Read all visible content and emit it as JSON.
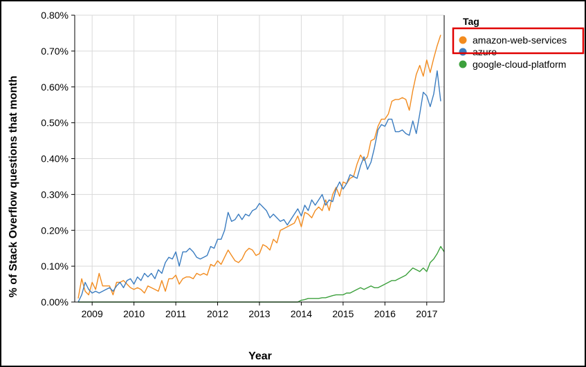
{
  "chart_data": {
    "type": "line",
    "xlabel": "Year",
    "ylabel": "% of Stack Overflow questions that month",
    "x_ticks": [
      "2009",
      "2010",
      "2011",
      "2012",
      "2013",
      "2014",
      "2015",
      "2016",
      "2017"
    ],
    "y_ticks": [
      "0.00%",
      "0.10%",
      "0.20%",
      "0.30%",
      "0.40%",
      "0.50%",
      "0.60%",
      "0.70%",
      "0.80%"
    ],
    "xlim": [
      "2008-08",
      "2017-06"
    ],
    "ylim": [
      0,
      0.8
    ],
    "grid": true,
    "legend": {
      "title": "Tag",
      "placement": "top-right"
    },
    "series": [
      {
        "name": "amazon-web-services",
        "color": "#f28b1e",
        "points": [
          [
            "2008-09",
            0.01
          ],
          [
            "2008-10",
            0.065
          ],
          [
            "2008-11",
            0.03
          ],
          [
            "2008-12",
            0.02
          ],
          [
            "2009-01",
            0.055
          ],
          [
            "2009-02",
            0.035
          ],
          [
            "2009-03",
            0.08
          ],
          [
            "2009-04",
            0.045
          ],
          [
            "2009-05",
            0.045
          ],
          [
            "2009-06",
            0.045
          ],
          [
            "2009-07",
            0.02
          ],
          [
            "2009-08",
            0.055
          ],
          [
            "2009-09",
            0.055
          ],
          [
            "2009-10",
            0.06
          ],
          [
            "2009-11",
            0.05
          ],
          [
            "2009-12",
            0.04
          ],
          [
            "2010-01",
            0.035
          ],
          [
            "2010-02",
            0.04
          ],
          [
            "2010-03",
            0.035
          ],
          [
            "2010-04",
            0.025
          ],
          [
            "2010-05",
            0.045
          ],
          [
            "2010-06",
            0.04
          ],
          [
            "2010-07",
            0.035
          ],
          [
            "2010-08",
            0.03
          ],
          [
            "2010-09",
            0.06
          ],
          [
            "2010-10",
            0.03
          ],
          [
            "2010-11",
            0.065
          ],
          [
            "2010-12",
            0.065
          ],
          [
            "2011-01",
            0.075
          ],
          [
            "2011-02",
            0.05
          ],
          [
            "2011-03",
            0.065
          ],
          [
            "2011-04",
            0.07
          ],
          [
            "2011-05",
            0.07
          ],
          [
            "2011-06",
            0.065
          ],
          [
            "2011-07",
            0.08
          ],
          [
            "2011-08",
            0.075
          ],
          [
            "2011-09",
            0.08
          ],
          [
            "2011-10",
            0.075
          ],
          [
            "2011-11",
            0.105
          ],
          [
            "2011-12",
            0.1
          ],
          [
            "2012-01",
            0.115
          ],
          [
            "2012-02",
            0.105
          ],
          [
            "2012-03",
            0.125
          ],
          [
            "2012-04",
            0.145
          ],
          [
            "2012-05",
            0.13
          ],
          [
            "2012-06",
            0.115
          ],
          [
            "2012-07",
            0.11
          ],
          [
            "2012-08",
            0.12
          ],
          [
            "2012-09",
            0.14
          ],
          [
            "2012-10",
            0.15
          ],
          [
            "2012-11",
            0.145
          ],
          [
            "2012-12",
            0.13
          ],
          [
            "2013-01",
            0.135
          ],
          [
            "2013-02",
            0.16
          ],
          [
            "2013-03",
            0.155
          ],
          [
            "2013-04",
            0.145
          ],
          [
            "2013-05",
            0.175
          ],
          [
            "2013-06",
            0.165
          ],
          [
            "2013-07",
            0.2
          ],
          [
            "2013-08",
            0.205
          ],
          [
            "2013-09",
            0.21
          ],
          [
            "2013-10",
            0.215
          ],
          [
            "2013-11",
            0.22
          ],
          [
            "2013-12",
            0.24
          ],
          [
            "2014-01",
            0.21
          ],
          [
            "2014-02",
            0.25
          ],
          [
            "2014-03",
            0.245
          ],
          [
            "2014-04",
            0.235
          ],
          [
            "2014-05",
            0.255
          ],
          [
            "2014-06",
            0.265
          ],
          [
            "2014-07",
            0.255
          ],
          [
            "2014-08",
            0.285
          ],
          [
            "2014-09",
            0.255
          ],
          [
            "2014-10",
            0.3
          ],
          [
            "2014-11",
            0.32
          ],
          [
            "2014-12",
            0.295
          ],
          [
            "2015-01",
            0.335
          ],
          [
            "2015-02",
            0.33
          ],
          [
            "2015-03",
            0.345
          ],
          [
            "2015-04",
            0.35
          ],
          [
            "2015-05",
            0.385
          ],
          [
            "2015-06",
            0.41
          ],
          [
            "2015-07",
            0.395
          ],
          [
            "2015-08",
            0.405
          ],
          [
            "2015-09",
            0.45
          ],
          [
            "2015-10",
            0.455
          ],
          [
            "2015-11",
            0.49
          ],
          [
            "2015-12",
            0.51
          ],
          [
            "2016-01",
            0.51
          ],
          [
            "2016-02",
            0.525
          ],
          [
            "2016-03",
            0.56
          ],
          [
            "2016-04",
            0.565
          ],
          [
            "2016-05",
            0.565
          ],
          [
            "2016-06",
            0.57
          ],
          [
            "2016-07",
            0.565
          ],
          [
            "2016-08",
            0.535
          ],
          [
            "2016-09",
            0.59
          ],
          [
            "2016-10",
            0.635
          ],
          [
            "2016-11",
            0.66
          ],
          [
            "2016-12",
            0.63
          ],
          [
            "2017-01",
            0.675
          ],
          [
            "2017-02",
            0.64
          ],
          [
            "2017-03",
            0.68
          ],
          [
            "2017-04",
            0.715
          ],
          [
            "2017-05",
            0.745
          ]
        ]
      },
      {
        "name": "azure",
        "color": "#3a7cc0",
        "points": [
          [
            "2008-09",
            0.0
          ],
          [
            "2008-10",
            0.02
          ],
          [
            "2008-11",
            0.055
          ],
          [
            "2008-12",
            0.035
          ],
          [
            "2009-01",
            0.025
          ],
          [
            "2009-02",
            0.03
          ],
          [
            "2009-03",
            0.025
          ],
          [
            "2009-04",
            0.03
          ],
          [
            "2009-05",
            0.035
          ],
          [
            "2009-06",
            0.04
          ],
          [
            "2009-07",
            0.03
          ],
          [
            "2009-08",
            0.045
          ],
          [
            "2009-09",
            0.055
          ],
          [
            "2009-10",
            0.04
          ],
          [
            "2009-11",
            0.06
          ],
          [
            "2009-12",
            0.065
          ],
          [
            "2010-01",
            0.05
          ],
          [
            "2010-02",
            0.07
          ],
          [
            "2010-03",
            0.06
          ],
          [
            "2010-04",
            0.08
          ],
          [
            "2010-05",
            0.07
          ],
          [
            "2010-06",
            0.08
          ],
          [
            "2010-07",
            0.065
          ],
          [
            "2010-08",
            0.09
          ],
          [
            "2010-09",
            0.08
          ],
          [
            "2010-10",
            0.11
          ],
          [
            "2010-11",
            0.125
          ],
          [
            "2010-12",
            0.12
          ],
          [
            "2011-01",
            0.14
          ],
          [
            "2011-02",
            0.1
          ],
          [
            "2011-03",
            0.14
          ],
          [
            "2011-04",
            0.14
          ],
          [
            "2011-05",
            0.15
          ],
          [
            "2011-06",
            0.14
          ],
          [
            "2011-07",
            0.125
          ],
          [
            "2011-08",
            0.12
          ],
          [
            "2011-09",
            0.125
          ],
          [
            "2011-10",
            0.13
          ],
          [
            "2011-11",
            0.155
          ],
          [
            "2011-12",
            0.15
          ],
          [
            "2012-01",
            0.175
          ],
          [
            "2012-02",
            0.175
          ],
          [
            "2012-03",
            0.2
          ],
          [
            "2012-04",
            0.25
          ],
          [
            "2012-05",
            0.225
          ],
          [
            "2012-06",
            0.23
          ],
          [
            "2012-07",
            0.245
          ],
          [
            "2012-08",
            0.23
          ],
          [
            "2012-09",
            0.245
          ],
          [
            "2012-10",
            0.24
          ],
          [
            "2012-11",
            0.255
          ],
          [
            "2012-12",
            0.26
          ],
          [
            "2013-01",
            0.275
          ],
          [
            "2013-02",
            0.265
          ],
          [
            "2013-03",
            0.255
          ],
          [
            "2013-04",
            0.235
          ],
          [
            "2013-05",
            0.245
          ],
          [
            "2013-06",
            0.235
          ],
          [
            "2013-07",
            0.225
          ],
          [
            "2013-08",
            0.23
          ],
          [
            "2013-09",
            0.215
          ],
          [
            "2013-10",
            0.23
          ],
          [
            "2013-11",
            0.245
          ],
          [
            "2013-12",
            0.26
          ],
          [
            "2014-01",
            0.24
          ],
          [
            "2014-02",
            0.27
          ],
          [
            "2014-03",
            0.255
          ],
          [
            "2014-04",
            0.285
          ],
          [
            "2014-05",
            0.27
          ],
          [
            "2014-06",
            0.285
          ],
          [
            "2014-07",
            0.3
          ],
          [
            "2014-08",
            0.27
          ],
          [
            "2014-09",
            0.285
          ],
          [
            "2014-10",
            0.28
          ],
          [
            "2014-11",
            0.315
          ],
          [
            "2014-12",
            0.335
          ],
          [
            "2015-01",
            0.315
          ],
          [
            "2015-02",
            0.33
          ],
          [
            "2015-03",
            0.355
          ],
          [
            "2015-04",
            0.35
          ],
          [
            "2015-05",
            0.345
          ],
          [
            "2015-06",
            0.38
          ],
          [
            "2015-07",
            0.405
          ],
          [
            "2015-08",
            0.37
          ],
          [
            "2015-09",
            0.39
          ],
          [
            "2015-10",
            0.43
          ],
          [
            "2015-11",
            0.48
          ],
          [
            "2015-12",
            0.495
          ],
          [
            "2016-01",
            0.49
          ],
          [
            "2016-02",
            0.51
          ],
          [
            "2016-03",
            0.51
          ],
          [
            "2016-04",
            0.475
          ],
          [
            "2016-05",
            0.475
          ],
          [
            "2016-06",
            0.48
          ],
          [
            "2016-07",
            0.47
          ],
          [
            "2016-08",
            0.465
          ],
          [
            "2016-09",
            0.505
          ],
          [
            "2016-10",
            0.47
          ],
          [
            "2016-11",
            0.525
          ],
          [
            "2016-12",
            0.585
          ],
          [
            "2017-01",
            0.575
          ],
          [
            "2017-02",
            0.545
          ],
          [
            "2017-03",
            0.58
          ],
          [
            "2017-04",
            0.645
          ],
          [
            "2017-05",
            0.56
          ]
        ]
      },
      {
        "name": "google-cloud-platform",
        "color": "#3ca03c",
        "points": [
          [
            "2008-09",
            0.0
          ],
          [
            "2013-12",
            0.0
          ],
          [
            "2014-01",
            0.005
          ],
          [
            "2014-02",
            0.007
          ],
          [
            "2014-03",
            0.01
          ],
          [
            "2014-04",
            0.01
          ],
          [
            "2014-05",
            0.01
          ],
          [
            "2014-06",
            0.01
          ],
          [
            "2014-07",
            0.012
          ],
          [
            "2014-08",
            0.012
          ],
          [
            "2014-09",
            0.015
          ],
          [
            "2014-10",
            0.018
          ],
          [
            "2014-11",
            0.02
          ],
          [
            "2014-12",
            0.02
          ],
          [
            "2015-01",
            0.02
          ],
          [
            "2015-02",
            0.025
          ],
          [
            "2015-03",
            0.025
          ],
          [
            "2015-04",
            0.03
          ],
          [
            "2015-05",
            0.035
          ],
          [
            "2015-06",
            0.04
          ],
          [
            "2015-07",
            0.035
          ],
          [
            "2015-08",
            0.04
          ],
          [
            "2015-09",
            0.045
          ],
          [
            "2015-10",
            0.04
          ],
          [
            "2015-11",
            0.04
          ],
          [
            "2015-12",
            0.045
          ],
          [
            "2016-01",
            0.05
          ],
          [
            "2016-02",
            0.055
          ],
          [
            "2016-03",
            0.06
          ],
          [
            "2016-04",
            0.06
          ],
          [
            "2016-05",
            0.065
          ],
          [
            "2016-06",
            0.07
          ],
          [
            "2016-07",
            0.075
          ],
          [
            "2016-08",
            0.085
          ],
          [
            "2016-09",
            0.095
          ],
          [
            "2016-10",
            0.09
          ],
          [
            "2016-11",
            0.085
          ],
          [
            "2016-12",
            0.095
          ],
          [
            "2017-01",
            0.085
          ],
          [
            "2017-02",
            0.11
          ],
          [
            "2017-03",
            0.12
          ],
          [
            "2017-04",
            0.135
          ],
          [
            "2017-05",
            0.155
          ],
          [
            "2017-06",
            0.14
          ]
        ]
      }
    ]
  }
}
